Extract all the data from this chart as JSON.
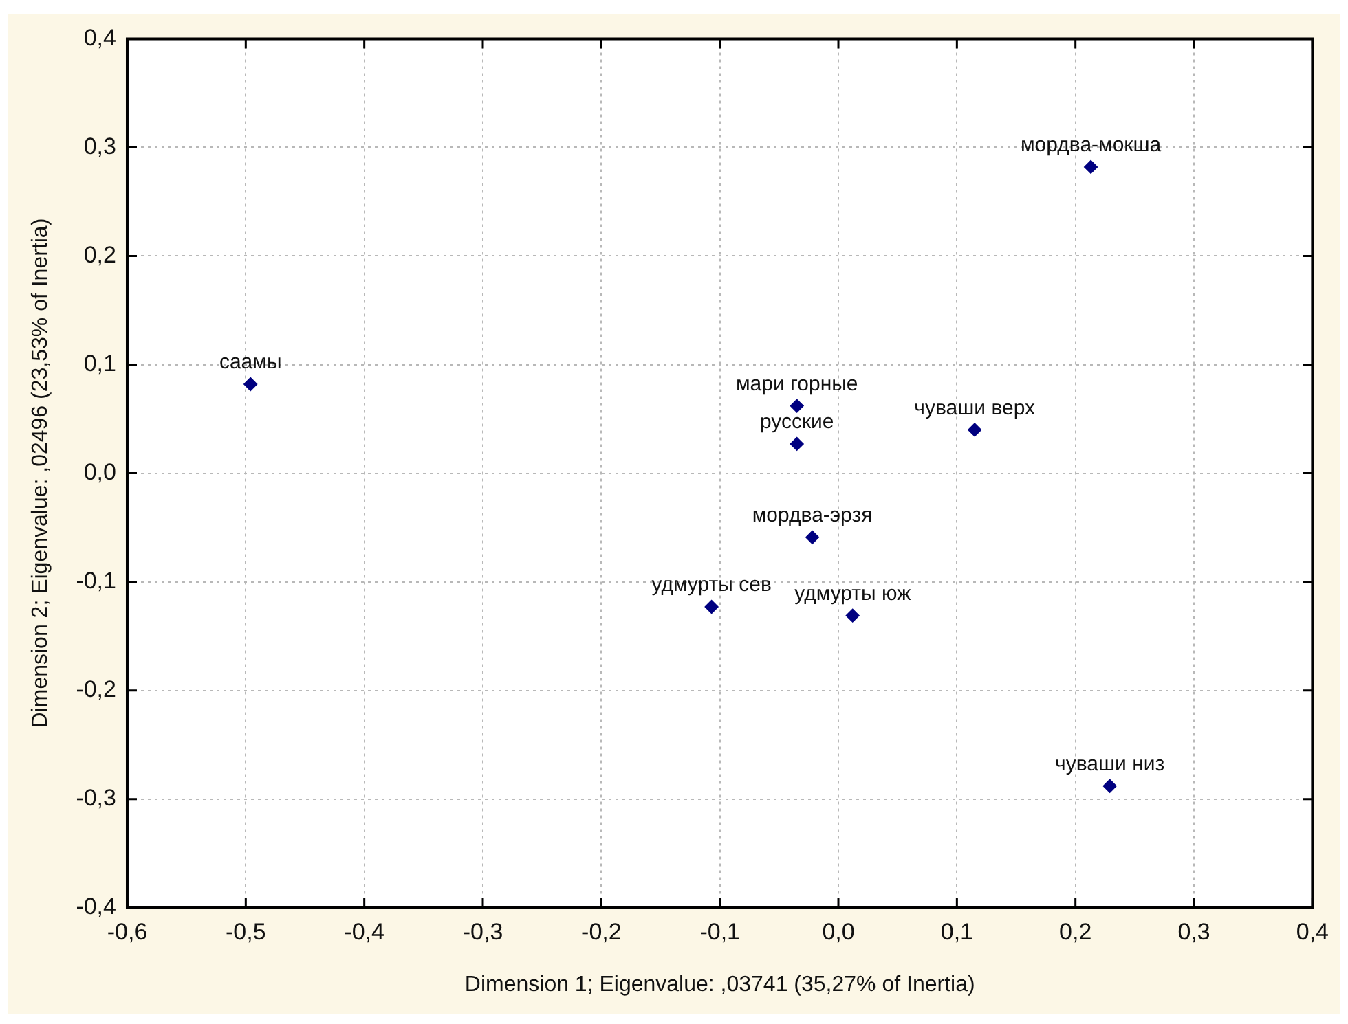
{
  "chart_data": {
    "type": "scatter",
    "xlabel": "Dimension 1; Eigenvalue: ,03741 (35,27% of Inertia)",
    "ylabel": "Dimension 2; Eigenvalue: ,02496 (23,53% of Inertia)",
    "series": [
      {
        "color": "#000080",
        "x": [
          -0.496,
          0.213,
          -0.035,
          -0.035,
          0.115,
          -0.022,
          -0.107,
          0.012,
          0.229
        ],
        "values": [
          0.082,
          0.282,
          0.062,
          0.027,
          0.04,
          -0.059,
          -0.123,
          -0.131,
          -0.288
        ],
        "value_labels": [
          "саамы",
          "мордва-мокша",
          "мари горные",
          "русские",
          "чуваши верх",
          "мордва-эрзя",
          "удмурты сев",
          "удмурты юж",
          "чуваши низ"
        ]
      }
    ],
    "xlim": [
      -0.6,
      0.4
    ],
    "xticks": [
      {
        "value": -0.6,
        "label": "-0,6"
      },
      {
        "value": -0.5,
        "label": "-0,5"
      },
      {
        "value": -0.4,
        "label": "-0,4"
      },
      {
        "value": -0.3,
        "label": "-0,3"
      },
      {
        "value": -0.2,
        "label": "-0,2"
      },
      {
        "value": -0.1,
        "label": "-0,1"
      },
      {
        "value": 0,
        "label": "0,0"
      },
      {
        "value": 0.1,
        "label": "0,1"
      },
      {
        "value": 0.2,
        "label": "0,2"
      },
      {
        "value": 0.3,
        "label": "0,3"
      },
      {
        "value": 0.4,
        "label": "0,4"
      }
    ],
    "ylim": [
      -0.4,
      0.4
    ],
    "yticks": [
      {
        "value": -0.4,
        "label": "-0,4"
      },
      {
        "value": -0.3,
        "label": "-0,3"
      },
      {
        "value": -0.2,
        "label": "-0,2"
      },
      {
        "value": -0.1,
        "label": "-0,1"
      },
      {
        "value": 0,
        "label": "0,0"
      },
      {
        "value": 0.1,
        "label": "0,1"
      },
      {
        "value": 0.2,
        "label": "0,2"
      },
      {
        "value": 0.3,
        "label": "0,3"
      },
      {
        "value": 0.4,
        "label": "0,4"
      }
    ],
    "grid": true,
    "marker": "diamond",
    "legend": false
  }
}
